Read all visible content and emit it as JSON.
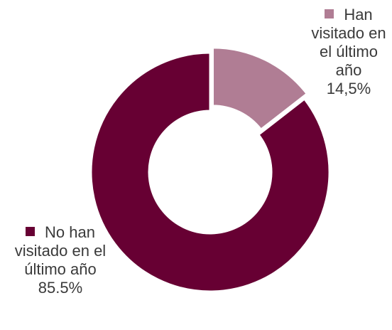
{
  "chart_data": {
    "type": "pie",
    "donut": true,
    "categories": [
      "Han visitado en el último año",
      "No han visitado en el último año"
    ],
    "values": [
      14.5,
      85.5
    ],
    "value_labels": [
      "14,5%",
      "85.5%"
    ],
    "colors": [
      "#b07d94",
      "#670033"
    ],
    "title": "",
    "legend": "inline-labels"
  }
}
